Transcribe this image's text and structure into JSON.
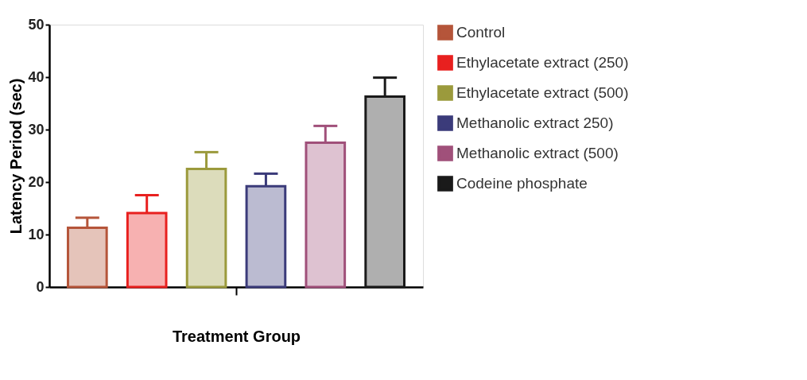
{
  "chart_data": {
    "type": "bar",
    "xlabel": "Treatment Group",
    "ylabel": "Latency Period (sec)",
    "categories": [
      null
    ],
    "series": [
      {
        "name": "Control",
        "color": "#b5553a",
        "values": [
          11.3
        ],
        "errors": [
          1.9
        ]
      },
      {
        "name": "Ethylacetate extract (250)",
        "color": "#e8201f",
        "values": [
          14.1
        ],
        "errors": [
          3.4
        ]
      },
      {
        "name": "Ethylacetate extract (500)",
        "color": "#9b9a3c",
        "values": [
          22.5
        ],
        "errors": [
          3.2
        ]
      },
      {
        "name": "Methanolic extract 250)",
        "color": "#3b3b7a",
        "values": [
          19.2
        ],
        "errors": [
          2.4
        ]
      },
      {
        "name": "Methanolic extract (500)",
        "color": "#a0507a",
        "values": [
          27.5
        ],
        "errors": [
          3.2
        ]
      },
      {
        "name": "Codeine phosphate",
        "color": "#1a1a1a",
        "values": [
          36.3
        ],
        "errors": [
          3.6
        ]
      }
    ],
    "ylim": [
      0,
      50
    ],
    "yticks": [
      0,
      10,
      20,
      30,
      40,
      50
    ],
    "grid": false,
    "legend": "right"
  }
}
